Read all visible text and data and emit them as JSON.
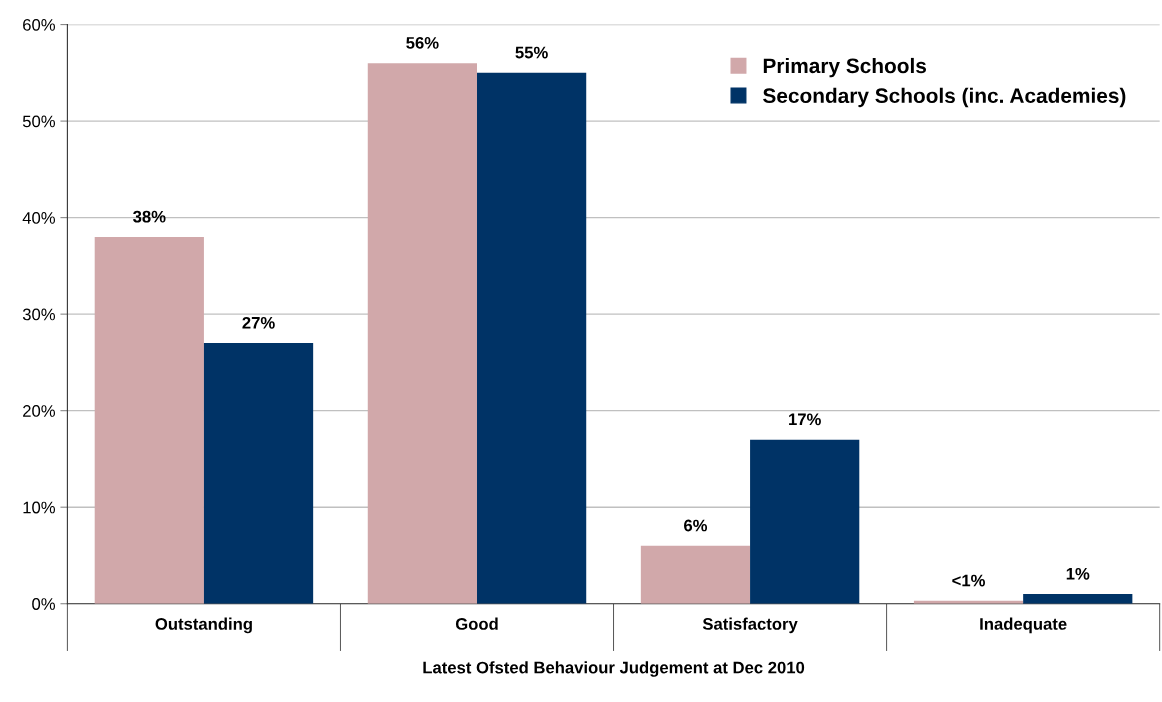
{
  "chart_data": {
    "type": "bar",
    "xlabel": "Latest Ofsted Behaviour Judgement at Dec 2010",
    "categories": [
      "Outstanding",
      "Good",
      "Satisfactory",
      "Inadequate"
    ],
    "series": [
      {
        "name": "Primary Schools",
        "color": "#d1a8aa",
        "values": [
          38,
          56,
          6,
          0.3
        ],
        "value_labels": [
          "38%",
          "56%",
          "6%",
          "<1%"
        ]
      },
      {
        "name": "Secondary Schools (inc. Academies)",
        "color": "#003366",
        "values": [
          27,
          55,
          17,
          1
        ],
        "value_labels": [
          "27%",
          "55%",
          "17%",
          "1%"
        ]
      }
    ],
    "ylim": [
      0,
      60
    ],
    "yticks": [
      {
        "value": 0,
        "label": "0%"
      },
      {
        "value": 10,
        "label": "10%"
      },
      {
        "value": 20,
        "label": "20%"
      },
      {
        "value": 30,
        "label": "30%"
      },
      {
        "value": 40,
        "label": "40%"
      },
      {
        "value": 50,
        "label": "50%"
      },
      {
        "value": 60,
        "label": "60%"
      }
    ],
    "grid": "y",
    "legend": "top right"
  }
}
